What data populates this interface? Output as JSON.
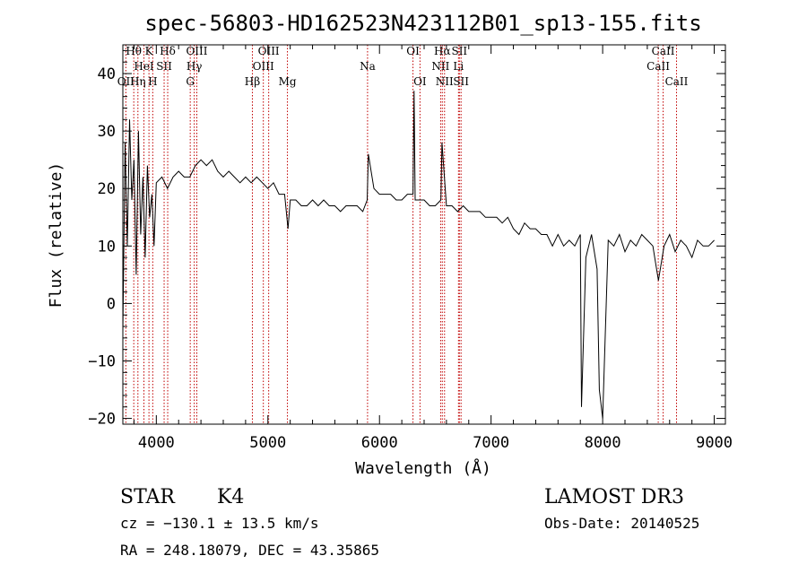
{
  "chart_data": {
    "type": "line",
    "title": "spec-56803-HD162523N423112B01_sp13-155.fits",
    "xlabel": "Wavelength (Å)",
    "ylabel": "Flux (relative)",
    "xlim": [
      3700,
      9100
    ],
    "ylim": [
      -21,
      45
    ],
    "x_ticks": [
      4000,
      5000,
      6000,
      7000,
      8000,
      9000
    ],
    "x_tick_labels": [
      "4000",
      "5000",
      "6000",
      "7000",
      "8000",
      "9000"
    ],
    "y_ticks": [
      -20,
      -10,
      0,
      10,
      20,
      30,
      40
    ],
    "y_tick_labels": [
      "−20",
      "−10",
      "0",
      "10",
      "20",
      "30",
      "40"
    ],
    "line_color": "#000000",
    "marker_color": "#c00000",
    "series": [
      {
        "name": "flux",
        "x": [
          3700,
          3720,
          3740,
          3760,
          3780,
          3800,
          3820,
          3840,
          3860,
          3880,
          3900,
          3920,
          3940,
          3960,
          3980,
          4000,
          4050,
          4100,
          4150,
          4200,
          4250,
          4300,
          4350,
          4400,
          4450,
          4500,
          4550,
          4600,
          4650,
          4700,
          4750,
          4800,
          4850,
          4900,
          4950,
          5000,
          5050,
          5100,
          5150,
          5180,
          5200,
          5250,
          5300,
          5350,
          5400,
          5450,
          5500,
          5550,
          5600,
          5650,
          5700,
          5750,
          5800,
          5850,
          5890,
          5900,
          5950,
          6000,
          6050,
          6100,
          6150,
          6200,
          6250,
          6300,
          6310,
          6320,
          6350,
          6400,
          6450,
          6500,
          6550,
          6560,
          6600,
          6650,
          6700,
          6750,
          6800,
          6850,
          6900,
          6950,
          7000,
          7050,
          7100,
          7150,
          7200,
          7250,
          7300,
          7350,
          7400,
          7450,
          7500,
          7550,
          7600,
          7650,
          7700,
          7750,
          7800,
          7810,
          7850,
          7900,
          7950,
          7970,
          8000,
          8050,
          8100,
          8150,
          8200,
          8250,
          8300,
          8350,
          8400,
          8450,
          8500,
          8550,
          8600,
          8650,
          8700,
          8750,
          8800,
          8850,
          8900,
          8950,
          9000
        ],
        "y": [
          -5,
          28,
          10,
          32,
          18,
          25,
          5,
          30,
          12,
          22,
          8,
          24,
          15,
          19,
          10,
          21,
          22,
          20,
          22,
          23,
          22,
          22,
          24,
          25,
          24,
          25,
          23,
          22,
          23,
          22,
          21,
          22,
          21,
          22,
          21,
          20,
          21,
          19,
          19,
          13,
          18,
          18,
          17,
          17,
          18,
          17,
          18,
          17,
          17,
          16,
          17,
          17,
          17,
          16,
          18,
          26,
          20,
          19,
          19,
          19,
          18,
          18,
          19,
          19,
          37,
          18,
          18,
          18,
          17,
          17,
          18,
          28,
          17,
          17,
          16,
          17,
          16,
          16,
          16,
          15,
          15,
          15,
          14,
          15,
          13,
          12,
          14,
          13,
          13,
          12,
          12,
          10,
          12,
          10,
          11,
          10,
          12,
          -18,
          8,
          12,
          6,
          -15,
          -20,
          11,
          10,
          12,
          9,
          11,
          10,
          12,
          11,
          10,
          4,
          10,
          12,
          9,
          11,
          10,
          8,
          11,
          10,
          10,
          11
        ]
      }
    ],
    "spectral_lines": [
      {
        "label": "Hθ",
        "x": 3798,
        "row": 0
      },
      {
        "label": "K",
        "x": 3934,
        "row": 0
      },
      {
        "label": "Hδ",
        "x": 4102,
        "row": 0
      },
      {
        "label": "OIII",
        "x": 4363,
        "row": 0
      },
      {
        "label": "OIII",
        "x": 5007,
        "row": 0
      },
      {
        "label": "OI",
        "x": 6300,
        "row": 0
      },
      {
        "label": "Hα",
        "x": 6563,
        "row": 0
      },
      {
        "label": "SII",
        "x": 6716,
        "row": 0
      },
      {
        "label": "CaII",
        "x": 8542,
        "row": 0
      },
      {
        "label": "HeI",
        "x": 3889,
        "row": 1
      },
      {
        "label": "SII",
        "x": 4070,
        "row": 1
      },
      {
        "label": "Hγ",
        "x": 4340,
        "row": 1
      },
      {
        "label": "OIII",
        "x": 4959,
        "row": 1
      },
      {
        "label": "Na",
        "x": 5893,
        "row": 1
      },
      {
        "label": "NII",
        "x": 6548,
        "row": 1
      },
      {
        "label": "Li",
        "x": 6708,
        "row": 1
      },
      {
        "label": "CaII",
        "x": 8498,
        "row": 1
      },
      {
        "label": "OII",
        "x": 3727,
        "row": 2
      },
      {
        "label": "Hη",
        "x": 3835,
        "row": 2
      },
      {
        "label": "H",
        "x": 3968,
        "row": 2
      },
      {
        "label": "G",
        "x": 4304,
        "row": 2
      },
      {
        "label": "Hβ",
        "x": 4861,
        "row": 2
      },
      {
        "label": "Mg",
        "x": 5175,
        "row": 2
      },
      {
        "label": "OI",
        "x": 6363,
        "row": 2
      },
      {
        "label": "NII",
        "x": 6583,
        "row": 2
      },
      {
        "label": "SII",
        "x": 6731,
        "row": 2
      },
      {
        "label": "CaII",
        "x": 8662,
        "row": 2
      }
    ]
  },
  "info": {
    "object_class": "STAR",
    "subclass": "K4",
    "survey": "LAMOST DR3",
    "redshift_line": "cz = −130.1 ± 13.5 km/s",
    "obs_date_line": "Obs-Date: 20140525",
    "coords_line": "RA = 248.18079, DEC =  43.35865"
  }
}
